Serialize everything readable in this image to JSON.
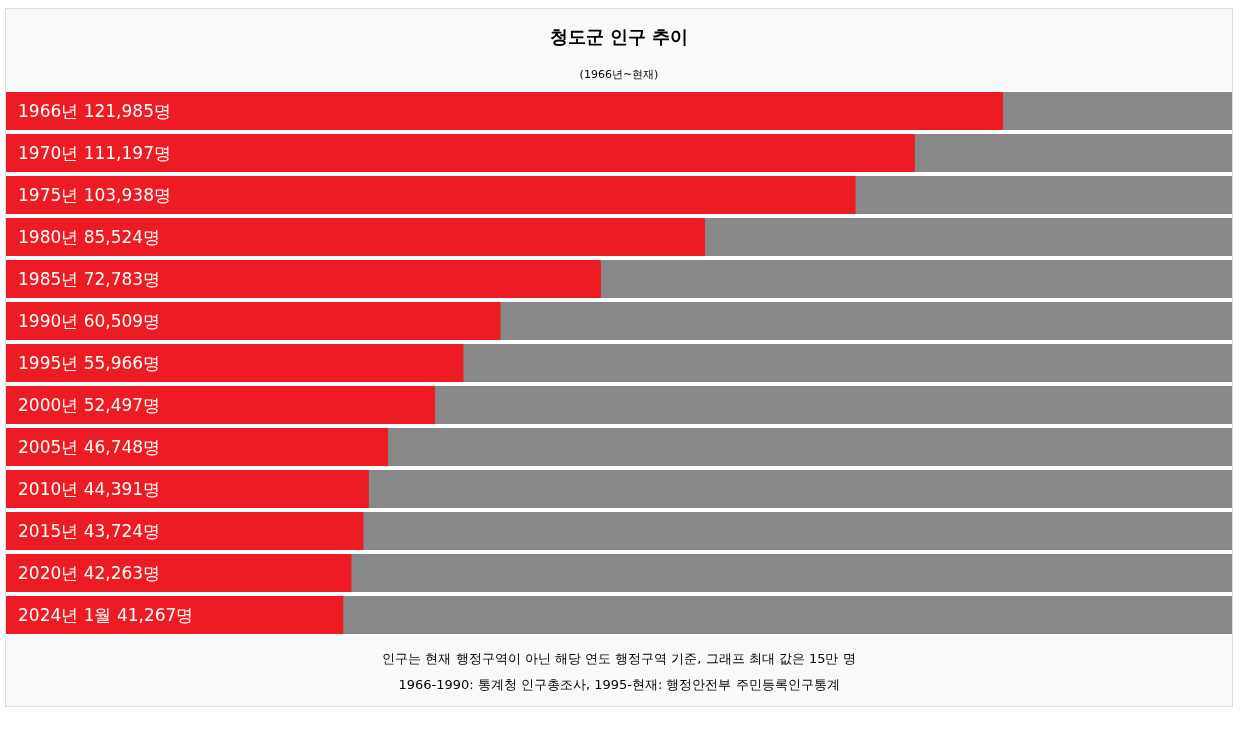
{
  "chart_data": {
    "type": "bar",
    "orientation": "horizontal",
    "title": "청도군 인구 추이",
    "subtitle": "(1966년~현재)",
    "categories": [
      "1966년",
      "1970년",
      "1975년",
      "1980년",
      "1985년",
      "1990년",
      "1995년",
      "2000년",
      "2005년",
      "2010년",
      "2015년",
      "2020년",
      "2024년 1월"
    ],
    "values": [
      121985,
      111197,
      103938,
      85524,
      72783,
      60509,
      55966,
      52497,
      46748,
      44391,
      43724,
      42263,
      41267
    ],
    "value_labels": [
      "121,985명",
      "111,197명",
      "103,938명",
      "85,524명",
      "72,783명",
      "60,509명",
      "55,966명",
      "52,497명",
      "46,748명",
      "44,391명",
      "43,724명",
      "42,263명",
      "41,267명"
    ],
    "color": "#ed1c24",
    "xlim": [
      0,
      150000
    ],
    "annotations": [
      "인구는 현재 행정구역이 아닌 해당 연도 행정구역 기준, 그래프 최대 값은 15만 명",
      "1966-1990: 통계청 인구총조사, 1995-현재: 행정안전부 주민등록인구통계"
    ]
  }
}
